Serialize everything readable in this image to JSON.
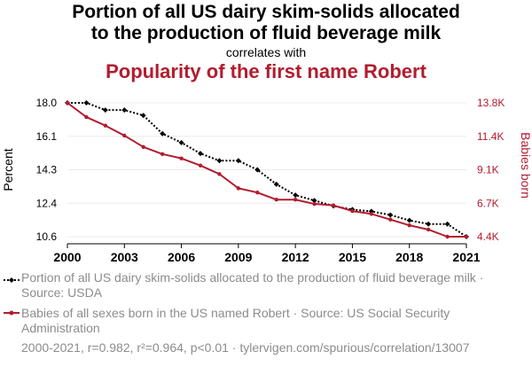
{
  "header": {
    "title_line1": "Portion of all US dairy skim-solids allocated",
    "title_line2": "to the production of fluid beverage milk",
    "correlates": "correlates with",
    "title2": "Popularity of the first name Robert"
  },
  "colors": {
    "series1": "#000000",
    "series2": "#b21c2e",
    "grid": "#ececec",
    "muted_text": "#8c8c8c"
  },
  "legend": {
    "item1": "Portion of all US dairy skim-solids allocated to the production of fluid beverage milk · Source: USDA",
    "item2": "Babies of all sexes born in the US named Robert · Source: US Social Security Administration"
  },
  "footer": "2000-2021, r=0.982, r²=0.964, p<0.01 · tylervigen.com/spurious/correlation/13007",
  "chart_data": {
    "type": "line",
    "x": [
      2000,
      2001,
      2002,
      2003,
      2004,
      2005,
      2006,
      2007,
      2008,
      2009,
      2010,
      2011,
      2012,
      2013,
      2014,
      2015,
      2016,
      2017,
      2018,
      2019,
      2020,
      2021
    ],
    "x_ticks": [
      "2000",
      "2003",
      "2006",
      "2009",
      "2012",
      "2015",
      "2018",
      "2021"
    ],
    "xlim": [
      2000,
      2021
    ],
    "y_left": {
      "label": "Percent",
      "ticks": [
        "10.6",
        "12.4",
        "14.3",
        "16.1",
        "18.0"
      ],
      "ylim": [
        10.6,
        18.0
      ]
    },
    "y_right": {
      "label": "Babies born",
      "ticks": [
        "4.4K",
        "6.7K",
        "9.1K",
        "11.4K",
        "13.8K"
      ],
      "ylim": [
        4400,
        13800
      ]
    },
    "grid": true,
    "series": [
      {
        "name": "Portion of all US dairy skim-solids allocated to the production of fluid beverage milk",
        "axis": "left",
        "style": "dotted",
        "marker": "diamond",
        "values": [
          18.0,
          18.0,
          17.6,
          17.6,
          17.3,
          16.3,
          15.8,
          15.2,
          14.8,
          14.8,
          14.3,
          13.5,
          12.9,
          12.6,
          12.3,
          12.1,
          12.0,
          11.8,
          11.5,
          11.3,
          11.3,
          10.6
        ]
      },
      {
        "name": "Babies of all sexes born in the US named Robert",
        "axis": "right",
        "style": "solid",
        "marker": "circle",
        "values": [
          13800,
          12800,
          12200,
          11500,
          10700,
          10200,
          9900,
          9400,
          8800,
          7800,
          7500,
          7000,
          7000,
          6700,
          6600,
          6200,
          6000,
          5600,
          5200,
          4900,
          4400,
          4400
        ]
      }
    ]
  }
}
